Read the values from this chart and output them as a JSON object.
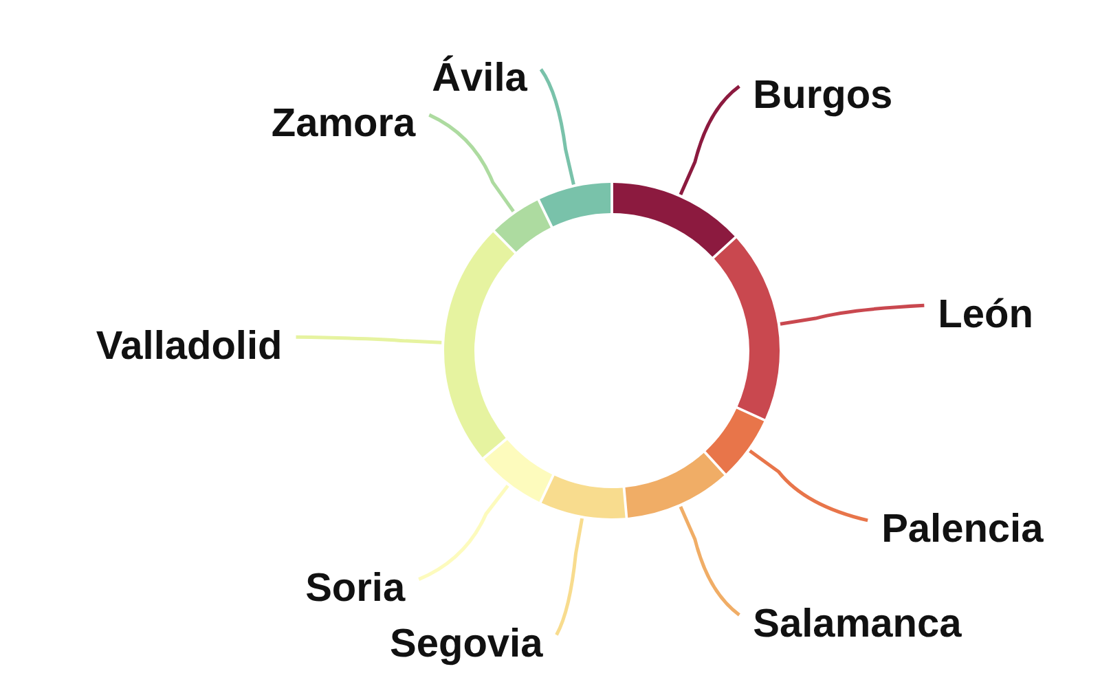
{
  "chart_data": {
    "type": "donut",
    "categories": [
      "Burgos",
      "León",
      "Palencia",
      "Salamanca",
      "Segovia",
      "Soria",
      "Valladolid",
      "Zamora",
      "Ávila"
    ],
    "values": [
      13.2,
      18.6,
      6.4,
      10.4,
      8.4,
      6.9,
      23.7,
      5.2,
      7.2
    ],
    "colors": [
      "#8c1a3f",
      "#c9484f",
      "#e8754a",
      "#f0ad66",
      "#f8dc8e",
      "#fdfbbd",
      "#e6f3a0",
      "#addba0",
      "#79c2aa"
    ]
  }
}
